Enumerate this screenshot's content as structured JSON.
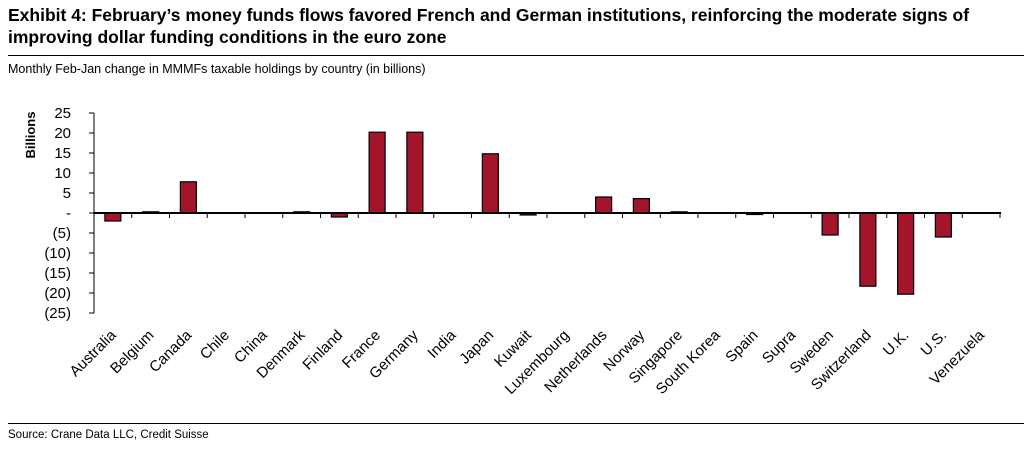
{
  "header": {
    "title": "Exhibit 4: February’s money funds flows favored French and German institutions, reinforcing the moderate signs of improving dollar funding conditions in the euro zone",
    "subtitle": "Monthly Feb-Jan change in MMMFs taxable holdings by country (in billions)"
  },
  "footer": {
    "source": "Source: Crane Data LLC, Credit Suisse"
  },
  "colors": {
    "bar_fill": "#a3152a",
    "bar_stroke": "#000000"
  },
  "chart_data": {
    "type": "bar",
    "title": "",
    "xlabel": "",
    "ylabel": "Billions",
    "ylim": [
      -25,
      25
    ],
    "yticks": [
      25,
      20,
      15,
      10,
      5,
      0,
      -5,
      -10,
      -15,
      -20,
      -25
    ],
    "ytick_labels": [
      "25",
      "20",
      "15",
      "10",
      "5",
      "-",
      "(5)",
      "(10)",
      "(15)",
      "(20)",
      "(25)"
    ],
    "grid": false,
    "categories": [
      "Australia",
      "Belgium",
      "Canada",
      "Chile",
      "China",
      "Denmark",
      "Finland",
      "France",
      "Germany",
      "India",
      "Japan",
      "Kuwait",
      "Luxembourg",
      "Netherlands",
      "Norway",
      "Singapore",
      "South Korea",
      "Spain",
      "Supra",
      "Sweden",
      "Switzerland",
      "U.K.",
      "U.S.",
      "Venezuela"
    ],
    "values": [
      -2,
      0.3,
      7.8,
      0,
      0,
      0.3,
      -1,
      20.2,
      20.2,
      0,
      14.8,
      -0.5,
      0,
      4,
      3.6,
      0.3,
      0,
      -0.3,
      0,
      -5.5,
      -18.3,
      -20.3,
      -6,
      0
    ]
  }
}
